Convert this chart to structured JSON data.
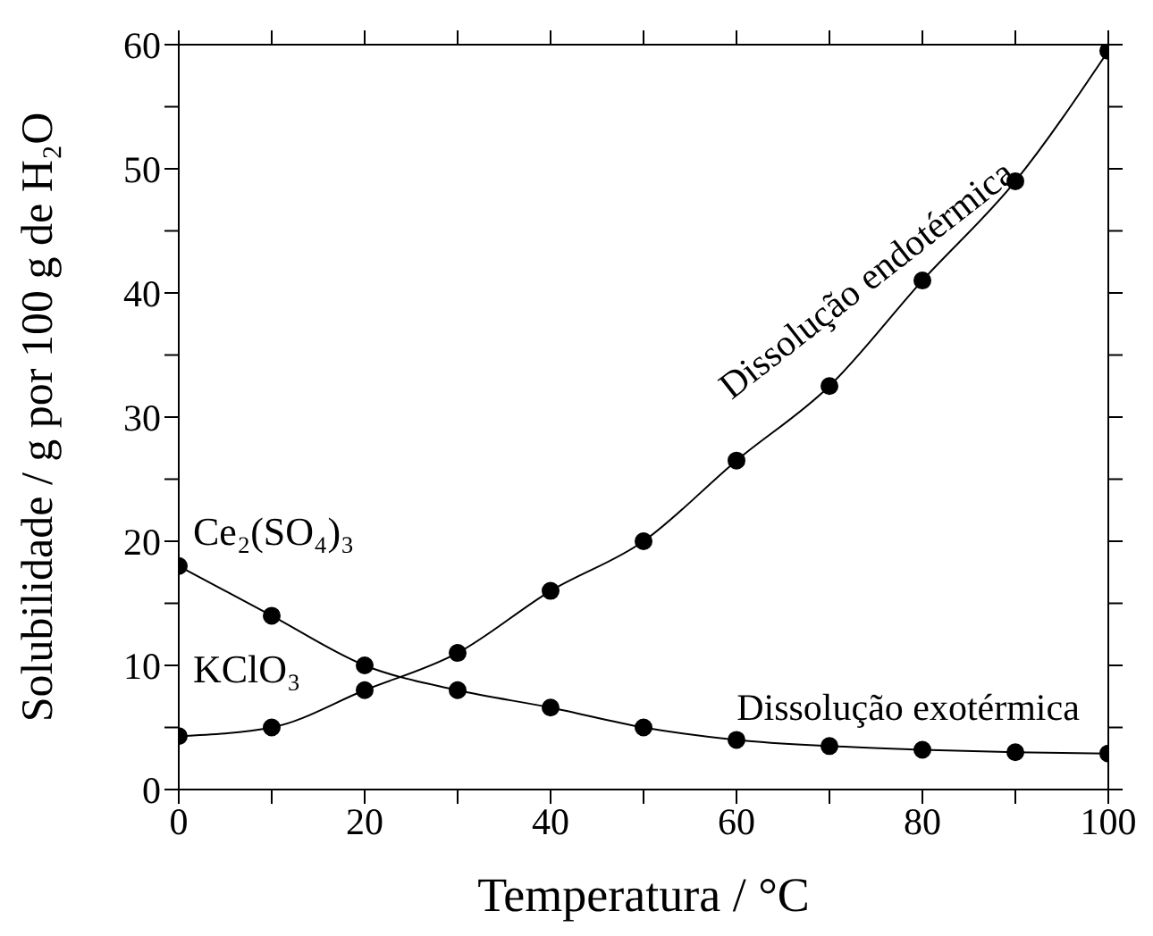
{
  "chart_data": {
    "type": "line",
    "xlabel": "Temperatura / °C",
    "ylabel": "Solubilidade / g por 100 g de H₂O",
    "x": [
      0,
      10,
      20,
      30,
      40,
      50,
      60,
      70,
      80,
      90,
      100
    ],
    "series": [
      {
        "name": "Ce₂(SO₄)₃",
        "color": "#000000",
        "values": [
          18,
          14,
          10,
          8,
          6.6,
          5,
          4,
          3.5,
          3.2,
          3,
          2.9
        ]
      },
      {
        "name": "KClO₃",
        "color": "#000000",
        "values": [
          4.3,
          5,
          8,
          11,
          16,
          20,
          26.5,
          32.5,
          41,
          49,
          59.5
        ]
      }
    ],
    "annotations": [
      "Dissolução endotérmica",
      "Dissolução exotérmica"
    ],
    "xlim": [
      0,
      100
    ],
    "ylim": [
      0,
      60
    ],
    "xticks": [
      0,
      {
        "value": 10,
        "label": null
      },
      20,
      {
        "value": 30,
        "label": null
      },
      40,
      {
        "value": 50,
        "label": null
      },
      60,
      {
        "value": 70,
        "label": null
      },
      80,
      {
        "value": 90,
        "label": null
      },
      100
    ],
    "yticks": [
      0,
      {
        "value": 5,
        "label": null
      },
      10,
      {
        "value": 15,
        "label": null
      },
      20,
      {
        "value": 25,
        "label": null
      },
      30,
      {
        "value": 35,
        "label": null
      },
      40,
      {
        "value": 45,
        "label": null
      },
      50,
      {
        "value": 55,
        "label": null
      },
      60
    ],
    "marker": "circle",
    "line_style": "solid",
    "grid": false,
    "legend": false
  }
}
